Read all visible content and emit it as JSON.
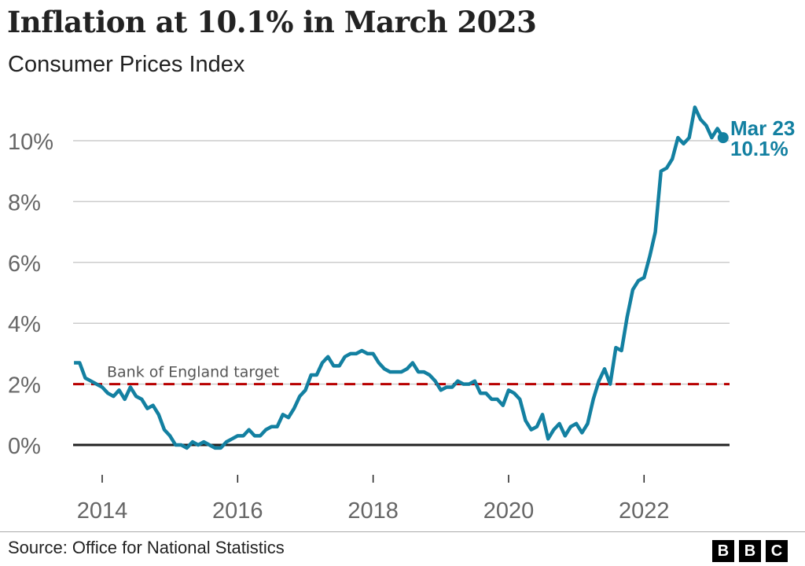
{
  "chart_data": {
    "type": "line",
    "title": "Inflation at 10.1% in March 2023",
    "subtitle": "Consumer Prices Index",
    "x_start": "2013-08",
    "x_end": "2023-03",
    "x_ticks": [
      "2014",
      "2016",
      "2018",
      "2020",
      "2022"
    ],
    "y_ticks": [
      "0%",
      "2%",
      "4%",
      "6%",
      "8%",
      "10%"
    ],
    "ylim": [
      -1,
      11
    ],
    "grid": true,
    "series": [
      {
        "color": "#1380a1",
        "values": [
          2.7,
          2.7,
          2.2,
          2.1,
          2.0,
          1.9,
          1.7,
          1.6,
          1.8,
          1.5,
          1.9,
          1.6,
          1.5,
          1.2,
          1.3,
          1.0,
          0.5,
          0.3,
          0.0,
          0.0,
          -0.1,
          0.1,
          0.0,
          0.1,
          0.0,
          -0.1,
          -0.1,
          0.1,
          0.2,
          0.3,
          0.3,
          0.5,
          0.3,
          0.3,
          0.5,
          0.6,
          0.6,
          1.0,
          0.9,
          1.2,
          1.6,
          1.8,
          2.3,
          2.3,
          2.7,
          2.9,
          2.6,
          2.6,
          2.9,
          3.0,
          3.0,
          3.1,
          3.0,
          3.0,
          2.7,
          2.5,
          2.4,
          2.4,
          2.4,
          2.5,
          2.7,
          2.4,
          2.4,
          2.3,
          2.1,
          1.8,
          1.9,
          1.9,
          2.1,
          2.0,
          2.0,
          2.1,
          1.7,
          1.7,
          1.5,
          1.5,
          1.3,
          1.8,
          1.7,
          1.5,
          0.8,
          0.5,
          0.6,
          1.0,
          0.2,
          0.5,
          0.7,
          0.3,
          0.6,
          0.7,
          0.4,
          0.7,
          1.5,
          2.1,
          2.5,
          2.0,
          3.2,
          3.1,
          4.2,
          5.1,
          5.4,
          5.5,
          6.2,
          7.0,
          9.0,
          9.1,
          9.4,
          10.1,
          9.9,
          10.1,
          11.1,
          10.7,
          10.5,
          10.1,
          10.4,
          10.1
        ]
      }
    ],
    "reference_line": {
      "label": "Bank of England target",
      "value": 2,
      "color": "#b80000"
    },
    "end_label": {
      "month": "Mar 23",
      "value": "10.1%"
    }
  },
  "footer": {
    "source": "Source: Office for National Statistics",
    "logo": [
      "B",
      "B",
      "C"
    ]
  }
}
